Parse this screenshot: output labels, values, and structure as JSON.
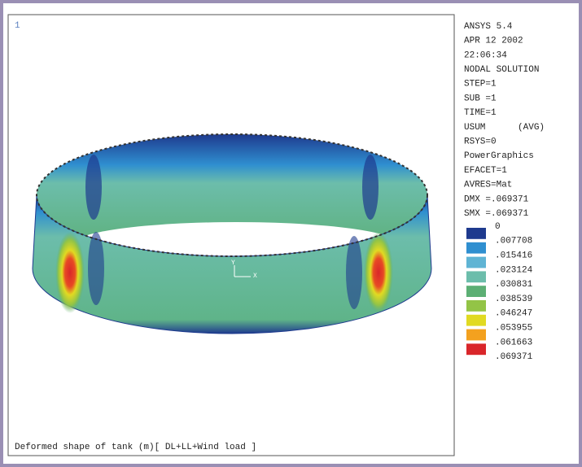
{
  "window": {
    "number": "1",
    "caption": "Deformed shape of tank (m)[ DL+LL+Wind load ]"
  },
  "triad": {
    "y": "Y",
    "x": "X"
  },
  "info": [
    "ANSYS 5.4",
    "APR 12 2002",
    "22:06:34",
    "NODAL SOLUTION",
    "STEP=1",
    "SUB =1",
    "TIME=1",
    "USUM      (AVG)",
    "RSYS=0",
    "PowerGraphics",
    "EFACET=1",
    "AVRES=Mat",
    "DMX =.069371",
    "SMX =.069371"
  ],
  "legend": {
    "labels": [
      "0",
      ".007708",
      ".015416",
      ".023124",
      ".030831",
      ".038539",
      ".046247",
      ".053955",
      ".061663",
      ".069371"
    ],
    "colors": [
      "#1e3a8e",
      "#2f8fd0",
      "#5fb4d4",
      "#6cbdab",
      "#5caf74",
      "#93c446",
      "#e1da22",
      "#f3a11f",
      "#d9262a"
    ]
  }
}
